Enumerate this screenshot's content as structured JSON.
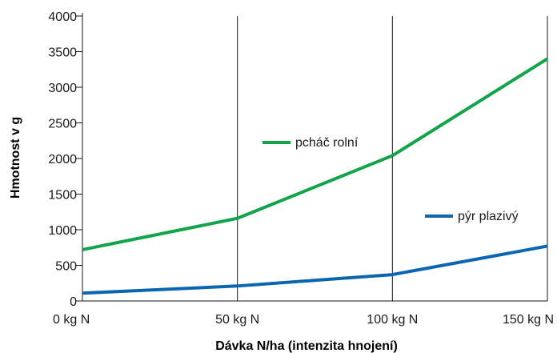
{
  "chart_data": {
    "type": "line",
    "title": "",
    "xlabel": "Dávka N/ha (intenzita hnojení)",
    "ylabel": "Hmotnost v g",
    "categories": [
      "0 kg N",
      "50 kg N",
      "100 kg N",
      "150 kg N"
    ],
    "x": [
      0,
      50,
      100,
      150
    ],
    "yticks": [
      0,
      500,
      1000,
      1500,
      2000,
      2500,
      3000,
      3500,
      4000
    ],
    "ylim": [
      0,
      4000
    ],
    "grid": "vertical",
    "series": [
      {
        "name": "pcháč rolní",
        "color": "#12a44a",
        "values": [
          720,
          1160,
          2040,
          3400
        ]
      },
      {
        "name": "pýr plazivý",
        "color": "#0b66b2",
        "values": [
          110,
          210,
          370,
          770
        ]
      }
    ]
  }
}
